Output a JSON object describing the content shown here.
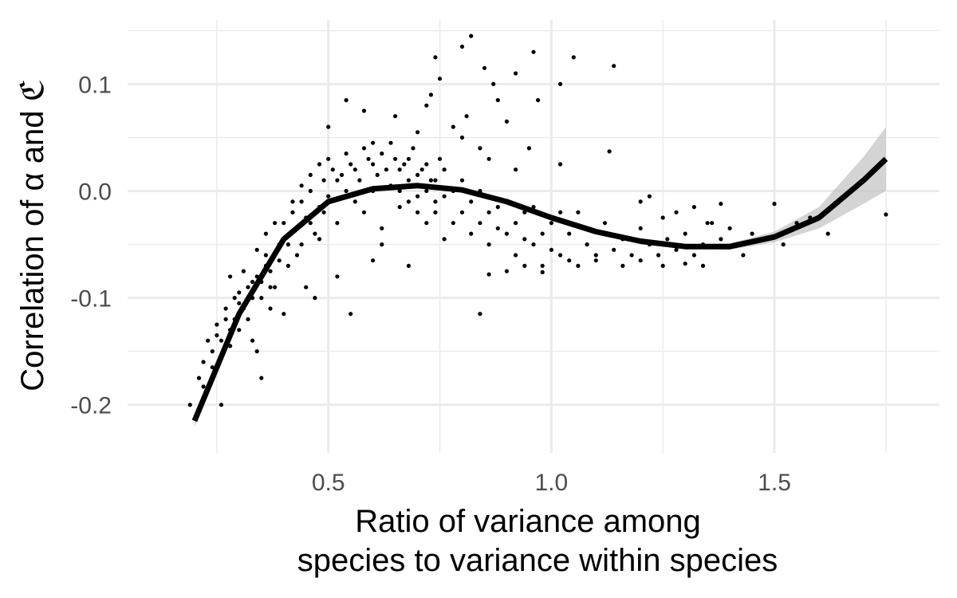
{
  "chart_data": {
    "type": "scatter",
    "title": "",
    "xlabel_lines": [
      "Ratio of variance among",
      "species to variance within species"
    ],
    "ylabel": "Correlation of α and ℭ",
    "xlim": [
      0.05,
      1.87
    ],
    "ylim": [
      -0.245,
      0.16
    ],
    "x_ticks": [
      {
        "value": 0.5,
        "label": "0.5"
      },
      {
        "value": 1.0,
        "label": "1.0"
      },
      {
        "value": 1.5,
        "label": "1.5"
      }
    ],
    "x_minor_ticks": [
      0.25,
      0.75,
      1.25,
      1.75
    ],
    "y_ticks": [
      {
        "value": -0.2,
        "label": "-0.2"
      },
      {
        "value": -0.1,
        "label": "-0.1"
      },
      {
        "value": 0.0,
        "label": "0.0"
      },
      {
        "value": 0.1,
        "label": "0.1"
      }
    ],
    "y_minor_ticks": [
      -0.15,
      -0.05,
      0.05,
      0.15
    ],
    "grid": true,
    "theme": "minimal",
    "point_color": "#000000",
    "fit_color": "#000000",
    "ribbon_color": "#bdbdbd",
    "scatter_points": [
      {
        "x": 0.19,
        "y": -0.2
      },
      {
        "x": 0.22,
        "y": -0.183
      },
      {
        "x": 0.23,
        "y": -0.14
      },
      {
        "x": 0.24,
        "y": -0.165
      },
      {
        "x": 0.25,
        "y": -0.125
      },
      {
        "x": 0.26,
        "y": -0.14
      },
      {
        "x": 0.27,
        "y": -0.11
      },
      {
        "x": 0.28,
        "y": -0.13
      },
      {
        "x": 0.29,
        "y": -0.12
      },
      {
        "x": 0.3,
        "y": -0.095
      },
      {
        "x": 0.31,
        "y": -0.11
      },
      {
        "x": 0.32,
        "y": -0.09
      },
      {
        "x": 0.33,
        "y": -0.1
      },
      {
        "x": 0.34,
        "y": -0.08
      },
      {
        "x": 0.35,
        "y": -0.085
      },
      {
        "x": 0.36,
        "y": -0.07
      },
      {
        "x": 0.37,
        "y": -0.075
      },
      {
        "x": 0.38,
        "y": -0.06
      },
      {
        "x": 0.39,
        "y": -0.05
      },
      {
        "x": 0.4,
        "y": -0.045
      },
      {
        "x": 0.26,
        "y": -0.2
      },
      {
        "x": 0.3,
        "y": -0.13
      },
      {
        "x": 0.33,
        "y": -0.14
      },
      {
        "x": 0.34,
        "y": -0.15
      },
      {
        "x": 0.35,
        "y": -0.175
      },
      {
        "x": 0.37,
        "y": -0.11
      },
      {
        "x": 0.38,
        "y": -0.09
      },
      {
        "x": 0.4,
        "y": -0.115
      },
      {
        "x": 0.41,
        "y": -0.07
      },
      {
        "x": 0.43,
        "y": -0.06
      },
      {
        "x": 0.4,
        "y": -0.03
      },
      {
        "x": 0.42,
        "y": -0.02
      },
      {
        "x": 0.44,
        "y": -0.01
      },
      {
        "x": 0.45,
        "y": -0.025
      },
      {
        "x": 0.46,
        "y": 0.0
      },
      {
        "x": 0.47,
        "y": -0.04
      },
      {
        "x": 0.48,
        "y": -0.015
      },
      {
        "x": 0.49,
        "y": 0.01
      },
      {
        "x": 0.5,
        "y": -0.005
      },
      {
        "x": 0.51,
        "y": 0.02
      },
      {
        "x": 0.52,
        "y": -0.03
      },
      {
        "x": 0.53,
        "y": 0.015
      },
      {
        "x": 0.54,
        "y": 0.0
      },
      {
        "x": 0.55,
        "y": 0.025
      },
      {
        "x": 0.56,
        "y": -0.01
      },
      {
        "x": 0.57,
        "y": 0.01
      },
      {
        "x": 0.58,
        "y": -0.02
      },
      {
        "x": 0.59,
        "y": 0.03
      },
      {
        "x": 0.6,
        "y": 0.0
      },
      {
        "x": 0.61,
        "y": 0.015
      },
      {
        "x": 0.62,
        "y": -0.035
      },
      {
        "x": 0.63,
        "y": 0.02
      },
      {
        "x": 0.64,
        "y": 0.005
      },
      {
        "x": 0.65,
        "y": 0.03
      },
      {
        "x": 0.66,
        "y": -0.015
      },
      {
        "x": 0.67,
        "y": 0.025
      },
      {
        "x": 0.68,
        "y": 0.01
      },
      {
        "x": 0.69,
        "y": 0.04
      },
      {
        "x": 0.7,
        "y": -0.005
      },
      {
        "x": 0.71,
        "y": 0.02
      },
      {
        "x": 0.72,
        "y": -0.03
      },
      {
        "x": 0.73,
        "y": 0.01
      },
      {
        "x": 0.74,
        "y": -0.02
      },
      {
        "x": 0.75,
        "y": 0.03
      },
      {
        "x": 0.76,
        "y": -0.045
      },
      {
        "x": 0.5,
        "y": 0.06
      },
      {
        "x": 0.54,
        "y": 0.085
      },
      {
        "x": 0.58,
        "y": 0.075
      },
      {
        "x": 0.6,
        "y": 0.045
      },
      {
        "x": 0.65,
        "y": 0.07
      },
      {
        "x": 0.7,
        "y": 0.055
      },
      {
        "x": 0.72,
        "y": 0.08
      },
      {
        "x": 0.73,
        "y": 0.09
      },
      {
        "x": 0.74,
        "y": 0.125
      },
      {
        "x": 0.75,
        "y": 0.105
      },
      {
        "x": 0.8,
        "y": 0.135
      },
      {
        "x": 0.82,
        "y": 0.145
      },
      {
        "x": 0.85,
        "y": 0.115
      },
      {
        "x": 0.87,
        "y": 0.1
      },
      {
        "x": 0.88,
        "y": 0.085
      },
      {
        "x": 0.92,
        "y": 0.11
      },
      {
        "x": 0.96,
        "y": 0.13
      },
      {
        "x": 0.97,
        "y": 0.085
      },
      {
        "x": 1.02,
        "y": 0.1
      },
      {
        "x": 1.05,
        "y": 0.125
      },
      {
        "x": 1.14,
        "y": 0.117
      },
      {
        "x": 0.78,
        "y": 0.06
      },
      {
        "x": 0.8,
        "y": 0.05
      },
      {
        "x": 0.81,
        "y": 0.07
      },
      {
        "x": 0.84,
        "y": 0.04
      },
      {
        "x": 0.86,
        "y": 0.03
      },
      {
        "x": 0.9,
        "y": 0.065
      },
      {
        "x": 0.92,
        "y": 0.02
      },
      {
        "x": 0.95,
        "y": 0.04
      },
      {
        "x": 1.02,
        "y": 0.025
      },
      {
        "x": 1.13,
        "y": 0.037
      },
      {
        "x": 0.78,
        "y": 0.0
      },
      {
        "x": 0.8,
        "y": -0.02
      },
      {
        "x": 0.82,
        "y": -0.01
      },
      {
        "x": 0.84,
        "y": -0.03
      },
      {
        "x": 0.86,
        "y": -0.05
      },
      {
        "x": 0.88,
        "y": -0.015
      },
      {
        "x": 0.9,
        "y": -0.04
      },
      {
        "x": 0.92,
        "y": -0.06
      },
      {
        "x": 0.94,
        "y": -0.02
      },
      {
        "x": 0.96,
        "y": -0.05
      },
      {
        "x": 0.98,
        "y": -0.07
      },
      {
        "x": 1.0,
        "y": -0.03
      },
      {
        "x": 1.02,
        "y": -0.06
      },
      {
        "x": 1.04,
        "y": -0.04
      },
      {
        "x": 1.06,
        "y": -0.02
      },
      {
        "x": 1.08,
        "y": -0.05
      },
      {
        "x": 1.1,
        "y": -0.065
      },
      {
        "x": 1.12,
        "y": -0.03
      },
      {
        "x": 1.14,
        "y": -0.055
      },
      {
        "x": 1.16,
        "y": -0.045
      },
      {
        "x": 1.18,
        "y": -0.06
      },
      {
        "x": 1.2,
        "y": -0.035
      },
      {
        "x": 1.22,
        "y": -0.05
      },
      {
        "x": 1.24,
        "y": -0.06
      },
      {
        "x": 1.26,
        "y": -0.045
      },
      {
        "x": 1.28,
        "y": -0.055
      },
      {
        "x": 1.3,
        "y": -0.04
      },
      {
        "x": 1.32,
        "y": -0.06
      },
      {
        "x": 1.34,
        "y": -0.05
      },
      {
        "x": 1.36,
        "y": -0.03
      },
      {
        "x": 1.38,
        "y": -0.045
      },
      {
        "x": 1.4,
        "y": -0.035
      },
      {
        "x": 1.43,
        "y": -0.06
      },
      {
        "x": 1.45,
        "y": -0.04
      },
      {
        "x": 1.5,
        "y": -0.012
      },
      {
        "x": 1.52,
        "y": -0.05
      },
      {
        "x": 1.55,
        "y": -0.03
      },
      {
        "x": 1.58,
        "y": -0.025
      },
      {
        "x": 1.62,
        "y": -0.04
      },
      {
        "x": 1.75,
        "y": -0.022
      },
      {
        "x": 1.2,
        "y": -0.01
      },
      {
        "x": 1.22,
        "y": -0.005
      },
      {
        "x": 1.25,
        "y": -0.025
      },
      {
        "x": 1.28,
        "y": -0.02
      },
      {
        "x": 1.32,
        "y": -0.015
      },
      {
        "x": 1.35,
        "y": -0.03
      },
      {
        "x": 1.38,
        "y": -0.012
      },
      {
        "x": 0.45,
        "y": -0.09
      },
      {
        "x": 0.47,
        "y": -0.1
      },
      {
        "x": 0.52,
        "y": -0.08
      },
      {
        "x": 0.55,
        "y": -0.115
      },
      {
        "x": 0.6,
        "y": -0.065
      },
      {
        "x": 0.62,
        "y": -0.05
      },
      {
        "x": 0.68,
        "y": -0.07
      },
      {
        "x": 0.84,
        "y": -0.115
      },
      {
        "x": 0.86,
        "y": -0.078
      },
      {
        "x": 0.9,
        "y": -0.075
      },
      {
        "x": 0.94,
        "y": -0.07
      },
      {
        "x": 0.98,
        "y": -0.076
      },
      {
        "x": 1.06,
        "y": -0.07
      },
      {
        "x": 1.1,
        "y": -0.06
      },
      {
        "x": 1.16,
        "y": -0.07
      },
      {
        "x": 1.2,
        "y": -0.065
      },
      {
        "x": 1.25,
        "y": -0.07
      },
      {
        "x": 1.3,
        "y": -0.068
      },
      {
        "x": 1.34,
        "y": -0.07
      },
      {
        "x": 0.42,
        "y": -0.01
      },
      {
        "x": 0.44,
        "y": 0.005
      },
      {
        "x": 0.46,
        "y": 0.015
      },
      {
        "x": 0.48,
        "y": 0.025
      },
      {
        "x": 0.5,
        "y": 0.03
      },
      {
        "x": 0.52,
        "y": 0.01
      },
      {
        "x": 0.54,
        "y": 0.035
      },
      {
        "x": 0.56,
        "y": 0.02
      },
      {
        "x": 0.58,
        "y": 0.04
      },
      {
        "x": 0.6,
        "y": 0.025
      },
      {
        "x": 0.62,
        "y": 0.035
      },
      {
        "x": 0.64,
        "y": 0.045
      },
      {
        "x": 0.66,
        "y": 0.02
      },
      {
        "x": 0.68,
        "y": 0.03
      },
      {
        "x": 0.7,
        "y": 0.015
      },
      {
        "x": 0.72,
        "y": 0.025
      },
      {
        "x": 0.74,
        "y": 0.01
      },
      {
        "x": 0.76,
        "y": 0.02
      },
      {
        "x": 0.34,
        "y": -0.055
      },
      {
        "x": 0.36,
        "y": -0.04
      },
      {
        "x": 0.38,
        "y": -0.03
      },
      {
        "x": 0.39,
        "y": -0.065
      },
      {
        "x": 0.41,
        "y": -0.05
      },
      {
        "x": 0.43,
        "y": -0.035
      },
      {
        "x": 0.44,
        "y": -0.05
      },
      {
        "x": 0.46,
        "y": -0.03
      },
      {
        "x": 0.48,
        "y": -0.045
      },
      {
        "x": 0.49,
        "y": -0.02
      },
      {
        "x": 0.28,
        "y": -0.08
      },
      {
        "x": 0.29,
        "y": -0.1
      },
      {
        "x": 0.31,
        "y": -0.075
      },
      {
        "x": 0.32,
        "y": -0.12
      },
      {
        "x": 0.33,
        "y": -0.085
      },
      {
        "x": 0.35,
        "y": -0.1
      },
      {
        "x": 0.36,
        "y": -0.06
      },
      {
        "x": 0.37,
        "y": -0.09
      },
      {
        "x": 0.24,
        "y": -0.15
      },
      {
        "x": 0.25,
        "y": -0.135
      },
      {
        "x": 0.27,
        "y": -0.12
      },
      {
        "x": 0.28,
        "y": -0.145
      },
      {
        "x": 0.3,
        "y": -0.105
      },
      {
        "x": 0.22,
        "y": -0.16
      },
      {
        "x": 0.21,
        "y": -0.175
      },
      {
        "x": 0.66,
        "y": 0.0
      },
      {
        "x": 0.68,
        "y": -0.01
      },
      {
        "x": 0.7,
        "y": -0.02
      },
      {
        "x": 0.72,
        "y": 0.0
      },
      {
        "x": 0.74,
        "y": -0.01
      },
      {
        "x": 0.76,
        "y": -0.005
      },
      {
        "x": 0.78,
        "y": -0.03
      },
      {
        "x": 0.8,
        "y": 0.01
      },
      {
        "x": 0.82,
        "y": -0.04
      },
      {
        "x": 0.84,
        "y": 0.0
      },
      {
        "x": 0.86,
        "y": -0.02
      },
      {
        "x": 0.88,
        "y": -0.035
      },
      {
        "x": 0.9,
        "y": -0.01
      },
      {
        "x": 0.92,
        "y": -0.03
      },
      {
        "x": 0.94,
        "y": -0.045
      },
      {
        "x": 0.96,
        "y": -0.015
      },
      {
        "x": 0.98,
        "y": -0.04
      },
      {
        "x": 1.0,
        "y": -0.055
      },
      {
        "x": 1.02,
        "y": -0.02
      },
      {
        "x": 1.04,
        "y": -0.065
      }
    ],
    "fit_line": {
      "x": [
        0.2,
        0.3,
        0.4,
        0.5,
        0.6,
        0.7,
        0.8,
        0.9,
        1.0,
        1.1,
        1.2,
        1.3,
        1.4,
        1.5,
        1.6,
        1.7,
        1.75
      ],
      "y": [
        -0.215,
        -0.115,
        -0.045,
        -0.01,
        0.002,
        0.005,
        0.001,
        -0.01,
        -0.025,
        -0.038,
        -0.047,
        -0.052,
        -0.052,
        -0.043,
        -0.025,
        0.01,
        0.03
      ],
      "se": [
        0.006,
        0.004,
        0.003,
        0.002,
        0.002,
        0.002,
        0.002,
        0.002,
        0.002,
        0.002,
        0.002,
        0.002,
        0.003,
        0.005,
        0.01,
        0.022,
        0.03
      ]
    }
  }
}
